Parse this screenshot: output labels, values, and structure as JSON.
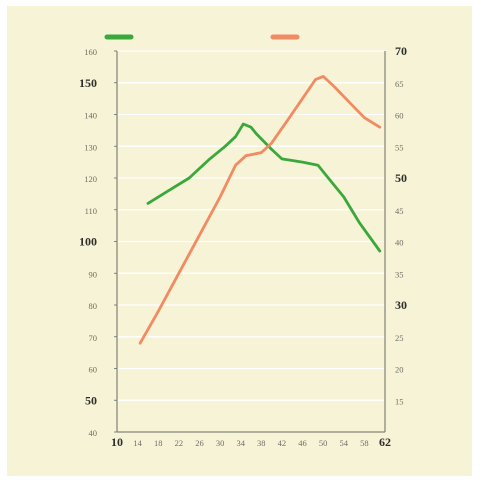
{
  "chart_data": {
    "type": "line",
    "title": "",
    "xlabel": "",
    "xlim": [
      10,
      62
    ],
    "x_ticks": [
      10,
      14,
      18,
      22,
      26,
      30,
      34,
      38,
      42,
      46,
      50,
      54,
      58,
      62
    ],
    "x_major_ticks": [
      10,
      62
    ],
    "y_left": {
      "label": "",
      "lim": [
        40,
        160
      ],
      "ticks": [
        40,
        50,
        60,
        70,
        80,
        90,
        100,
        110,
        120,
        130,
        140,
        150,
        160
      ],
      "major_ticks": [
        50,
        100,
        150
      ]
    },
    "y_right": {
      "label": "",
      "lim": [
        10,
        70
      ],
      "ticks": [
        15,
        20,
        25,
        30,
        35,
        40,
        45,
        50,
        55,
        60,
        65,
        70
      ],
      "major_ticks": [
        30,
        50,
        70
      ]
    },
    "grid": true,
    "legend_position": "top",
    "series": [
      {
        "axis": "left",
        "color": "#3aa83a",
        "x": [
          16,
          20,
          24,
          28,
          31,
          33,
          34.5,
          36,
          37,
          40,
          42,
          46,
          49,
          51,
          54,
          57,
          61
        ],
        "y": [
          112,
          116,
          120,
          126,
          130,
          133,
          137,
          136,
          134,
          129,
          126,
          125,
          124,
          120,
          114,
          106,
          97
        ]
      },
      {
        "axis": "right",
        "color": "#f28a62",
        "x": [
          14.5,
          18,
          22,
          26,
          30,
          33,
          35,
          38,
          40,
          43,
          46,
          48.5,
          50,
          52,
          55,
          58,
          61
        ],
        "y": [
          24,
          29,
          35,
          41,
          47,
          52,
          53.5,
          54,
          55.5,
          59,
          62.5,
          65.5,
          66,
          64.5,
          62,
          59.5,
          58
        ]
      }
    ]
  }
}
